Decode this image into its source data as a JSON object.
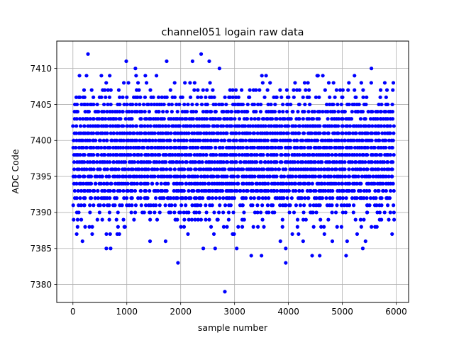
{
  "chart_data": {
    "type": "scatter",
    "title": "channel051 logain raw data",
    "xlabel": "sample number",
    "ylabel": "ADC Code",
    "xlim": [
      -300,
      6230
    ],
    "ylim": [
      7377.5,
      7413.8
    ],
    "xticks": [
      0,
      1000,
      2000,
      3000,
      4000,
      5000,
      6000
    ],
    "yticks": [
      7380,
      7385,
      7390,
      7395,
      7400,
      7405,
      7410
    ],
    "xtick_labels": [
      "0",
      "1000",
      "2000",
      "3000",
      "4000",
      "5000",
      "6000"
    ],
    "ytick_labels": [
      "7380",
      "7385",
      "7390",
      "7395",
      "7400",
      "7405",
      "7410"
    ],
    "grid": true,
    "marker_color": "#0000ff",
    "n_samples": 6000,
    "band": {
      "min_code": 7386,
      "max_code": 7409,
      "codes": [
        7386,
        7387,
        7388,
        7389,
        7390,
        7391,
        7392,
        7393,
        7394,
        7395,
        7396,
        7397,
        7398,
        7399,
        7400,
        7401,
        7402,
        7403,
        7404,
        7405,
        7406,
        7407,
        7408,
        7409
      ],
      "density": [
        0.04,
        0.08,
        0.16,
        0.28,
        0.45,
        0.62,
        0.78,
        0.9,
        0.97,
        1,
        1,
        1,
        1,
        1,
        1,
        1,
        0.97,
        0.9,
        0.78,
        0.6,
        0.42,
        0.26,
        0.14,
        0.06
      ]
    },
    "outliers": [
      {
        "x": 280,
        "y": 7412
      },
      {
        "x": 990,
        "y": 7411
      },
      {
        "x": 1160,
        "y": 7410
      },
      {
        "x": 1740,
        "y": 7411
      },
      {
        "x": 2220,
        "y": 7411
      },
      {
        "x": 2380,
        "y": 7412
      },
      {
        "x": 2530,
        "y": 7411
      },
      {
        "x": 2720,
        "y": 7410
      },
      {
        "x": 5540,
        "y": 7410
      },
      {
        "x": 620,
        "y": 7385
      },
      {
        "x": 700,
        "y": 7385
      },
      {
        "x": 1720,
        "y": 7386
      },
      {
        "x": 2420,
        "y": 7385
      },
      {
        "x": 2640,
        "y": 7385
      },
      {
        "x": 3040,
        "y": 7385
      },
      {
        "x": 3310,
        "y": 7384
      },
      {
        "x": 3500,
        "y": 7384
      },
      {
        "x": 3950,
        "y": 7385
      },
      {
        "x": 4440,
        "y": 7384
      },
      {
        "x": 4580,
        "y": 7384
      },
      {
        "x": 5070,
        "y": 7384
      },
      {
        "x": 5380,
        "y": 7385
      },
      {
        "x": 1950,
        "y": 7383
      },
      {
        "x": 3950,
        "y": 7383
      },
      {
        "x": 2820,
        "y": 7379
      }
    ]
  }
}
